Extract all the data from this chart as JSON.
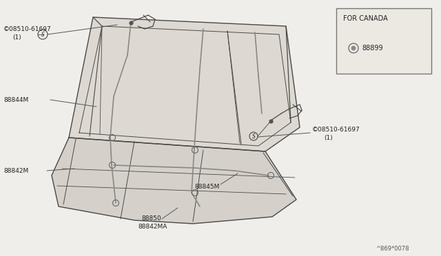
{
  "bg_color": "#f0eeea",
  "line_color": "#4a4a4a",
  "text_color": "#222222",
  "diagram_ref": "^869*0078",
  "labels": {
    "top_left_part": "© 08510-61697",
    "top_left_qty": "(1)",
    "left_part": "88844M",
    "left_bottom_part": "88842M",
    "center_bottom_part1": "88850",
    "center_bottom_part2": "88842MA",
    "right_bottom_part": "88845M",
    "right_part": "© 08510-61697",
    "right_qty": "(1)",
    "canada_label": "FOR CANADA",
    "canada_part": "88899"
  }
}
